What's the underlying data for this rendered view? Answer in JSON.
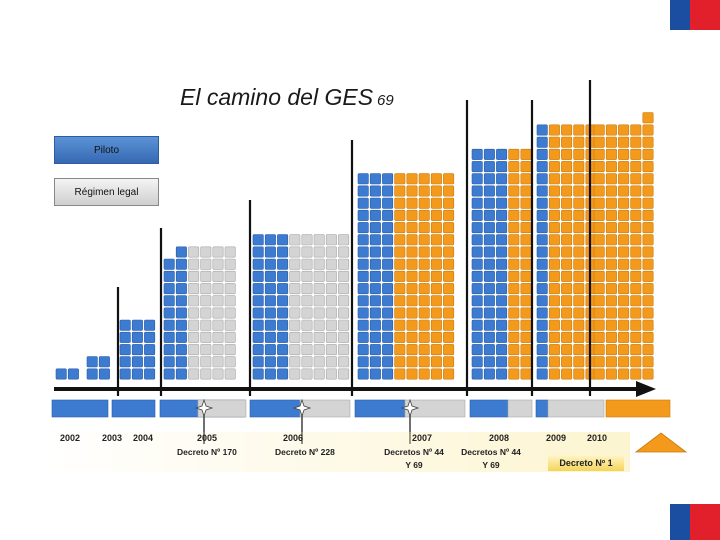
{
  "title": "El camino del GES",
  "title_suffix": "69",
  "legend": {
    "piloto": "Piloto",
    "regimen": "Régimen legal"
  },
  "years": [
    "2002",
    "2003",
    "2004",
    "2005",
    "2006",
    "2007",
    "2008",
    "2009",
    "2010"
  ],
  "decrees": {
    "d2005": "Decreto Nº 170",
    "d2006": "Decreto Nº 228",
    "d2007_line1": "Decretos Nº 44",
    "d2007_line2": "Y 69",
    "d2008_line1": "Decretos Nº 44",
    "d2008_line2": "Y 69",
    "d2010": "Decreto Nº 1"
  },
  "colors": {
    "blue": "#3d7bd0",
    "gray": "#d4d4d4",
    "orange": "#f39a1c",
    "flag_blue": "#1b4da1",
    "flag_red": "#e2202b"
  },
  "chart_data": {
    "type": "bar",
    "categories": [
      "2002",
      "2003",
      "2004",
      "2005",
      "2006",
      "2007",
      "2008",
      "2009",
      "2010"
    ],
    "series": [
      {
        "name": "Piloto",
        "values": [
          1,
          2,
          5,
          12,
          12,
          17,
          19,
          21,
          22
        ]
      }
    ]
  }
}
